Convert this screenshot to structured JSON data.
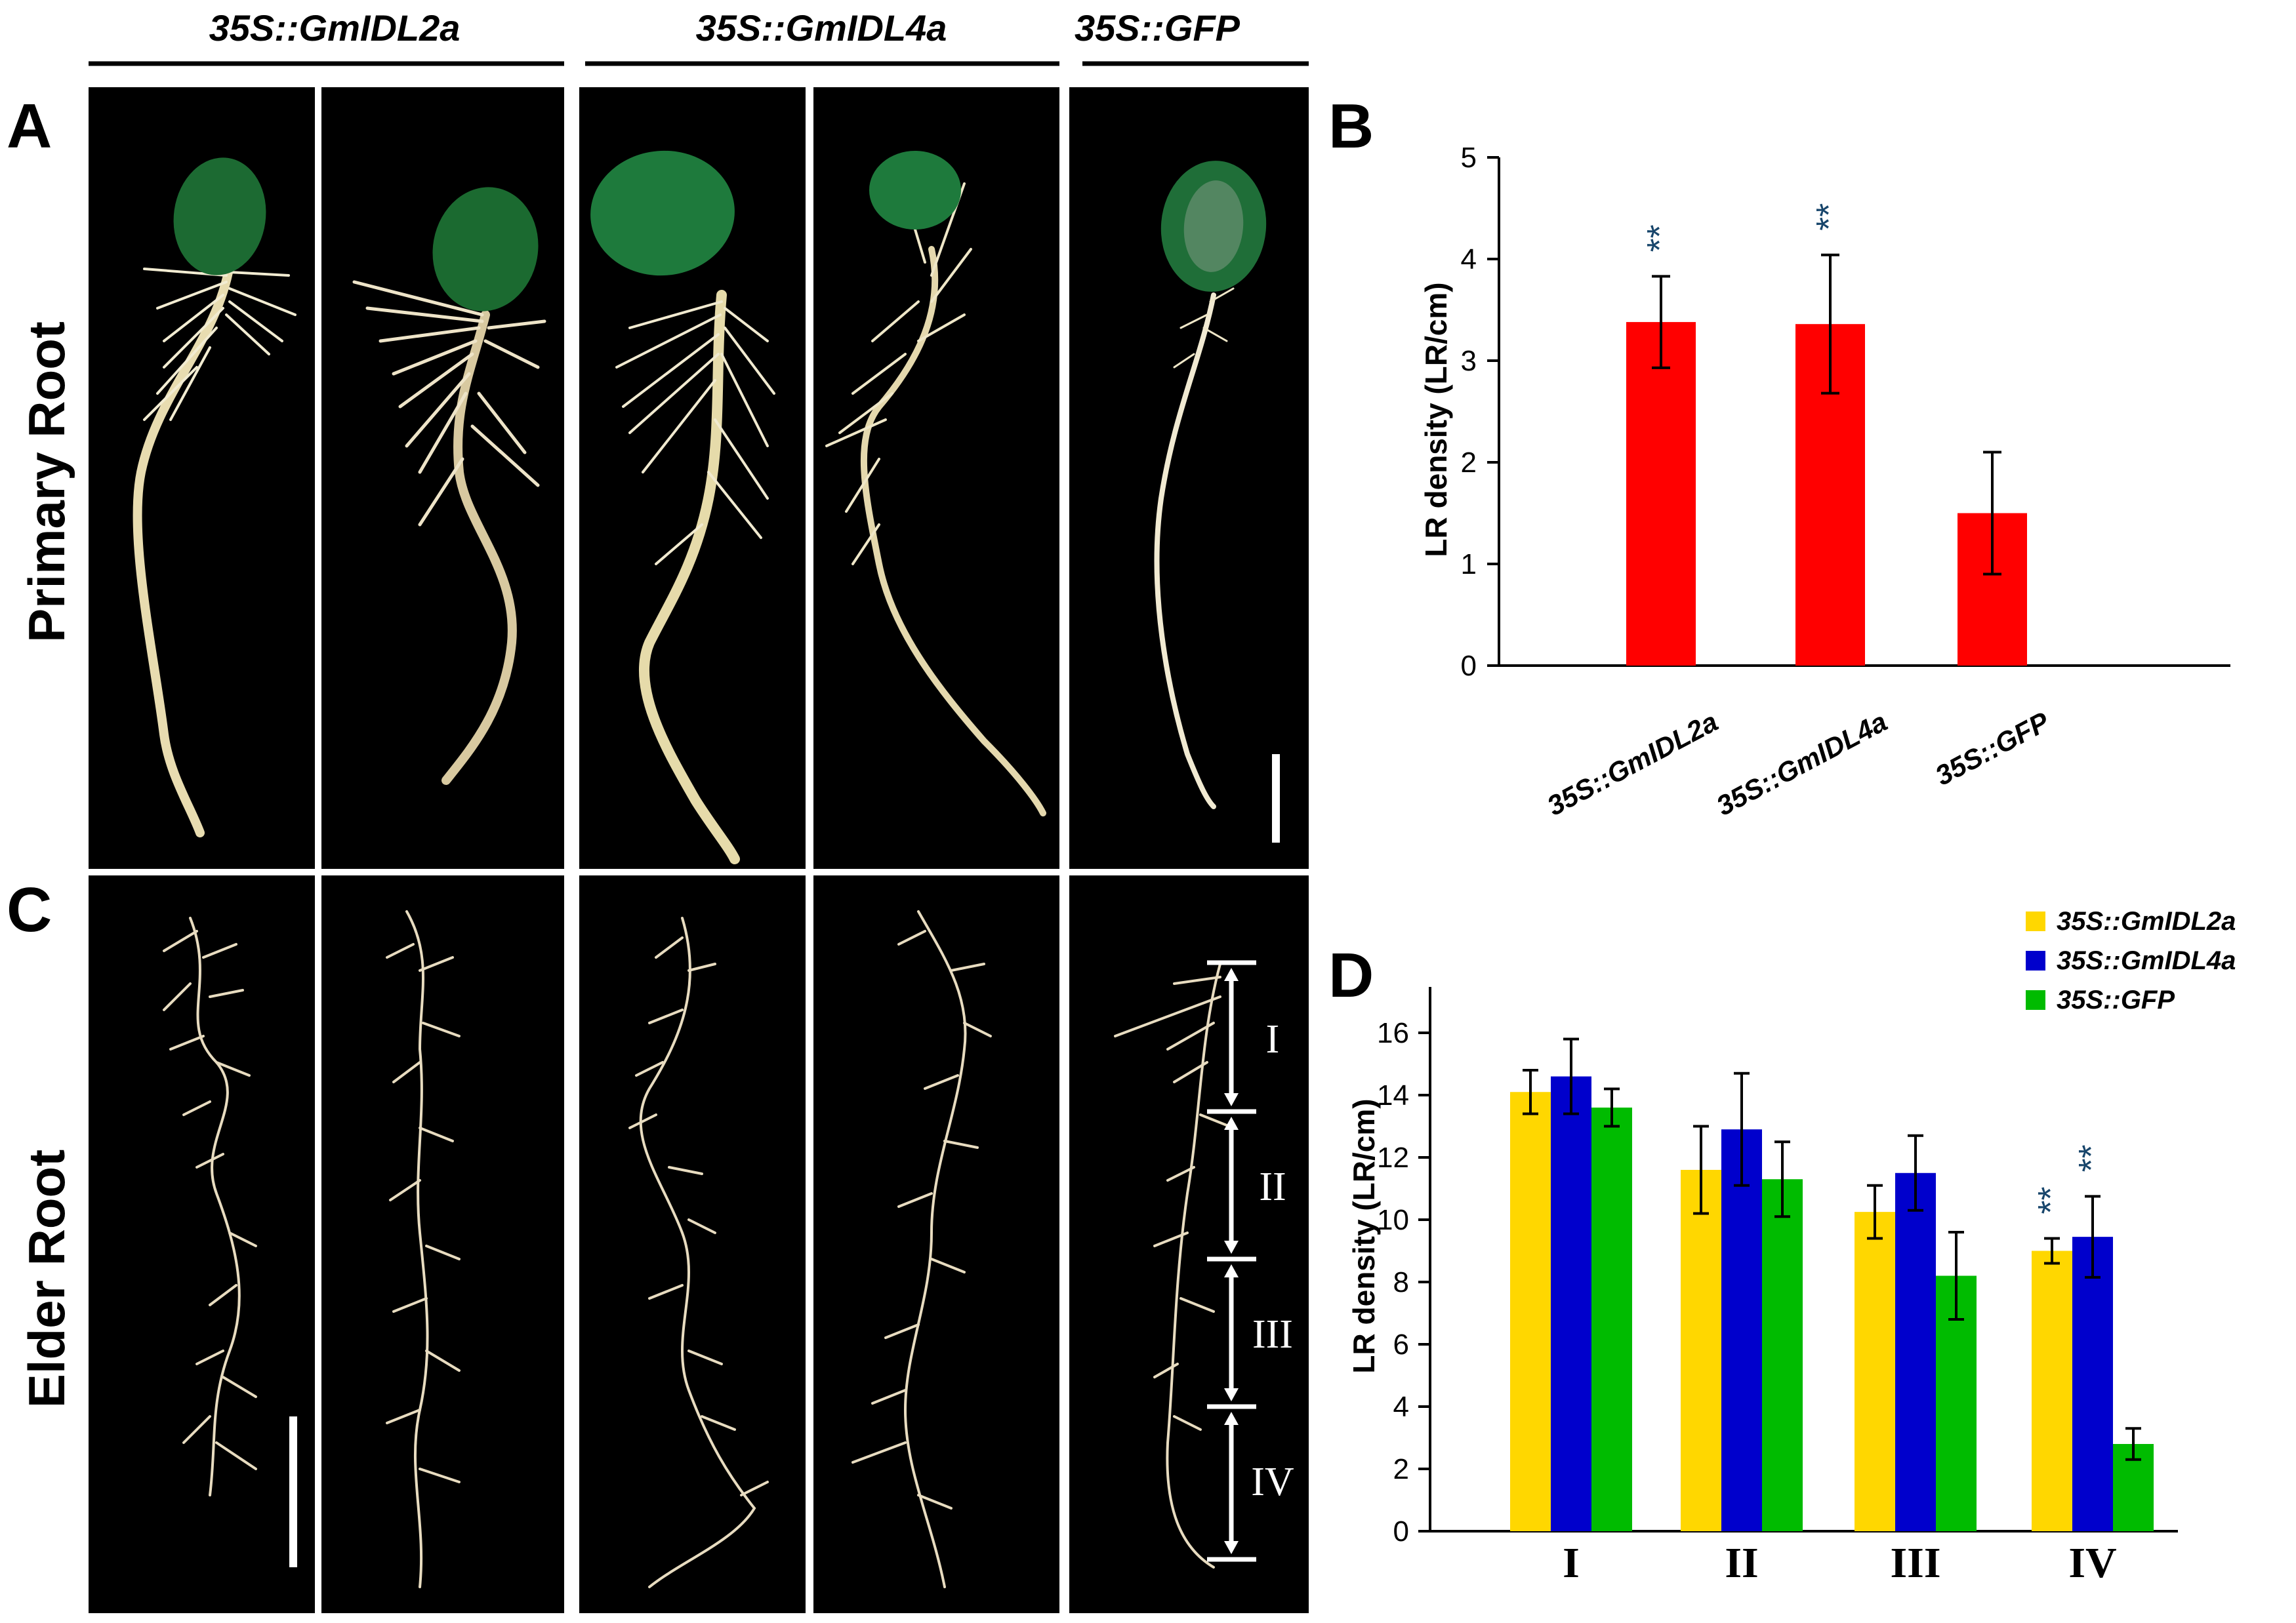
{
  "panels": {
    "a": "A",
    "b": "B",
    "c": "C",
    "d": "D"
  },
  "genotypes": [
    "35S::GmIDL2a",
    "35S::GmIDL4a",
    "35S::GFP"
  ],
  "row_labels": {
    "primary": "Primary Root",
    "elder": "Elder Root"
  },
  "segment_labels": [
    "I",
    "II",
    "III",
    "IV"
  ],
  "colors": {
    "red": "#ff0000",
    "yellow": "#ffd700",
    "blue": "#0000cc",
    "green": "#00bb00",
    "photo_bg": "#000000"
  },
  "chart_data": [
    {
      "id": "B",
      "type": "bar",
      "ylabel": "LR density (LR/cm)",
      "ylim": [
        0,
        5
      ],
      "yticks": [
        0,
        1,
        2,
        3,
        4,
        5
      ],
      "categories": [
        "35S::GmIDL2a",
        "35S::GmIDL4a",
        "35S::GFP"
      ],
      "values": [
        3.38,
        3.36,
        1.5
      ],
      "errors": [
        0.45,
        0.68,
        0.6
      ],
      "significance": [
        "**",
        "**",
        ""
      ],
      "color": "#ff0000"
    },
    {
      "id": "D",
      "type": "bar",
      "ylabel": "LR density (LR/cm)",
      "ylim": [
        0,
        16
      ],
      "yticks": [
        0,
        2,
        4,
        6,
        8,
        10,
        12,
        14,
        16
      ],
      "categories": [
        "I",
        "II",
        "III",
        "IV"
      ],
      "series": [
        {
          "name": "35S::GmIDL2a",
          "color": "#ffd700",
          "values": [
            14.1,
            11.6,
            10.25,
            9.0
          ],
          "errors": [
            0.7,
            1.4,
            0.85,
            0.4
          ],
          "significance": [
            "",
            "",
            "",
            "**"
          ]
        },
        {
          "name": "35S::GmIDL4a",
          "color": "#0000cc",
          "values": [
            14.6,
            12.9,
            11.5,
            9.45
          ],
          "errors": [
            1.2,
            1.8,
            1.2,
            1.3
          ],
          "significance": [
            "",
            "",
            "",
            "**"
          ]
        },
        {
          "name": "35S::GFP",
          "color": "#00bb00",
          "values": [
            13.6,
            11.3,
            8.2,
            2.8
          ],
          "errors": [
            0.6,
            1.2,
            1.4,
            0.5
          ],
          "significance": [
            "",
            "",
            "",
            ""
          ]
        }
      ],
      "legend_position": "top-right"
    }
  ]
}
